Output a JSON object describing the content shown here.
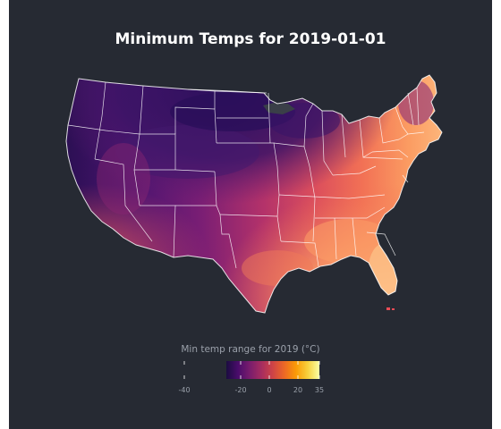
{
  "map": {
    "title": "Minimum Temps for 2019-01-01",
    "region": "Contiguous United States",
    "colors": {
      "background": "#262a33",
      "state_border": "#ffffff",
      "no_data": "#3a3f48"
    }
  },
  "legend": {
    "title": "Min temp range for 2019 (°C)",
    "ticks": [
      "-40",
      "-20",
      "0",
      "20",
      "35"
    ],
    "tick_values": [
      -40,
      -20,
      0,
      20,
      35
    ],
    "range": [
      -40,
      35
    ],
    "palette": [
      "#1b0c41",
      "#4a0c6b",
      "#781c6d",
      "#a52c60",
      "#cf4446",
      "#ed6925",
      "#fb9b06",
      "#f7d13d",
      "#fcffa4"
    ]
  }
}
